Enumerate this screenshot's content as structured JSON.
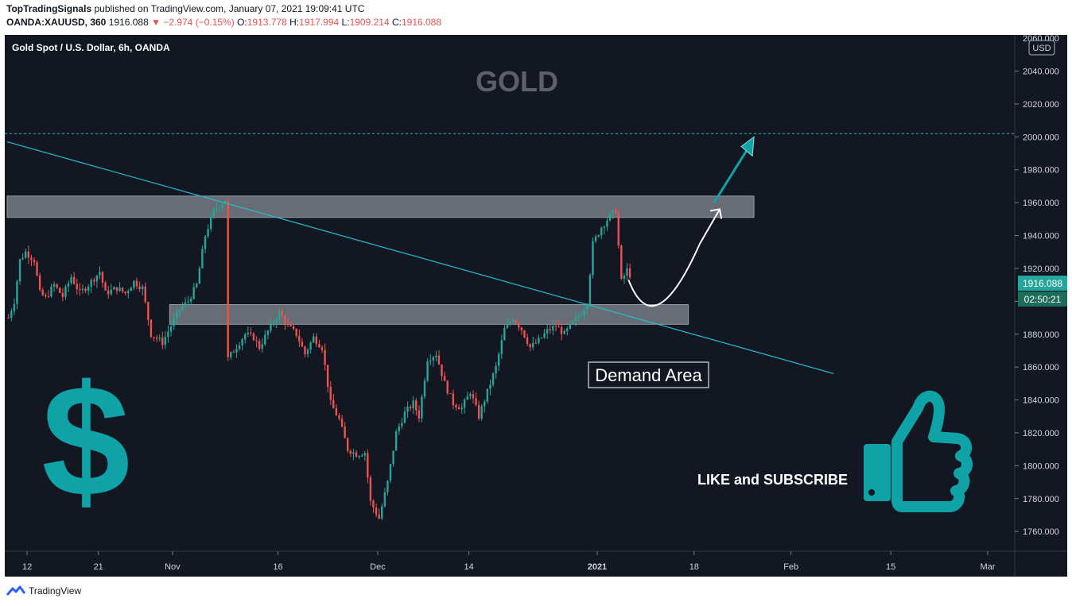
{
  "header": {
    "author": "TopTradingSignals",
    "published_text": "published on TradingView.com, January 07, 2021 19:09:41 UTC",
    "symbol": "OANDA:XAUUSD, 360",
    "last": "1916.088",
    "change": "▼ −2.974 (−0.15%)",
    "open_label": "O:",
    "open": "1913.778",
    "high_label": "H:",
    "high": "1917.994",
    "low_label": "L:",
    "low": "1909.214",
    "close_label": "C:",
    "close": "1916.088"
  },
  "chart": {
    "instrument_title": "Gold Spot / U.S. Dollar, 6h, OANDA",
    "watermark_title": "GOLD",
    "currency_badge": "USD",
    "price_badge": "1916.088",
    "countdown_badge": "02:50:21",
    "demand_label": "Demand Area",
    "cta_text": "LIKE and SUBSCRIBE",
    "dollar_symbol": "$",
    "icons": [
      "dollar-sign-icon",
      "thumbs-up-icon",
      "tradingview-logo-icon"
    ],
    "colors": {
      "background": "#131722",
      "up": "#26a69a",
      "down": "#ef5350",
      "trendline": "#1fc0d0",
      "accent": "#0fa3a8",
      "zone": "#787b86"
    }
  },
  "chart_data": {
    "type": "candlestick",
    "title": "Gold Spot / U.S. Dollar, 6h, OANDA",
    "timeframe": "6h",
    "currency": "USD",
    "ylim": [
      1748,
      2062
    ],
    "y_ticks": [
      1760,
      1780,
      1800,
      1820,
      1840,
      1860,
      1880,
      1900,
      1920,
      1940,
      1960,
      1980,
      2000,
      2020,
      2040
    ],
    "y_tick_labels": [
      "1760.000",
      "1780.000",
      "1800.000",
      "1820.000",
      "1840.000",
      "1860.000",
      "1880.000",
      "1900.000",
      "1920.000",
      "1940.000",
      "1960.000",
      "1980.000",
      "2000.000",
      "2020.000",
      "2040.000"
    ],
    "y_top_partial": "2060.000",
    "x_tick_labels": [
      "12",
      "21",
      "Nov",
      "16",
      "Dec",
      "14",
      "2021",
      "18",
      "Feb",
      "15",
      "Mar"
    ],
    "x_tick_bars": [
      7,
      32,
      58,
      95,
      130,
      162,
      207,
      241,
      275,
      310,
      344
    ],
    "price_path": [
      [
        0,
        1890
      ],
      [
        2,
        1900
      ],
      [
        4,
        1925
      ],
      [
        6,
        1930
      ],
      [
        9,
        1925
      ],
      [
        11,
        1905
      ],
      [
        13,
        1902
      ],
      [
        16,
        1910
      ],
      [
        19,
        1903
      ],
      [
        22,
        1915
      ],
      [
        25,
        1905
      ],
      [
        28,
        1910
      ],
      [
        32,
        1918
      ],
      [
        34,
        1905
      ],
      [
        38,
        1908
      ],
      [
        41,
        1905
      ],
      [
        44,
        1912
      ],
      [
        47,
        1908
      ],
      [
        50,
        1880
      ],
      [
        54,
        1875
      ],
      [
        57,
        1885
      ],
      [
        60,
        1895
      ],
      [
        63,
        1900
      ],
      [
        66,
        1910
      ],
      [
        69,
        1940
      ],
      [
        72,
        1955
      ],
      [
        76,
        1962
      ],
      [
        77,
        1865
      ],
      [
        79,
        1870
      ],
      [
        83,
        1880
      ],
      [
        86,
        1878
      ],
      [
        88,
        1872
      ],
      [
        92,
        1885
      ],
      [
        95,
        1893
      ],
      [
        98,
        1885
      ],
      [
        101,
        1880
      ],
      [
        104,
        1868
      ],
      [
        107,
        1878
      ],
      [
        110,
        1872
      ],
      [
        113,
        1838
      ],
      [
        116,
        1828
      ],
      [
        119,
        1810
      ],
      [
        122,
        1807
      ],
      [
        125,
        1808
      ],
      [
        127,
        1778
      ],
      [
        130,
        1768
      ],
      [
        133,
        1790
      ],
      [
        136,
        1820
      ],
      [
        139,
        1832
      ],
      [
        142,
        1838
      ],
      [
        144,
        1830
      ],
      [
        147,
        1865
      ],
      [
        150,
        1868
      ],
      [
        153,
        1850
      ],
      [
        156,
        1838
      ],
      [
        159,
        1835
      ],
      [
        162,
        1845
      ],
      [
        165,
        1830
      ],
      [
        168,
        1845
      ],
      [
        171,
        1860
      ],
      [
        174,
        1883
      ],
      [
        177,
        1890
      ],
      [
        180,
        1883
      ],
      [
        183,
        1872
      ],
      [
        186,
        1876
      ],
      [
        189,
        1882
      ],
      [
        192,
        1885
      ],
      [
        195,
        1880
      ],
      [
        198,
        1887
      ],
      [
        201,
        1893
      ],
      [
        203,
        1900
      ],
      [
        205,
        1935
      ],
      [
        208,
        1945
      ],
      [
        211,
        1952
      ],
      [
        213,
        1955
      ],
      [
        215,
        1912
      ],
      [
        217,
        1919
      ],
      [
        218,
        1916
      ]
    ],
    "bars_to_mar": 344,
    "resistance_zone": [
      1951,
      1964
    ],
    "demand_zone": [
      1886,
      1898
    ],
    "target_level": 2002,
    "trendline": [
      [
        0,
        1997
      ],
      [
        290,
        1856
      ]
    ],
    "forecast_path": [
      [
        218,
        1913
      ],
      [
        227,
        1892
      ],
      [
        243,
        1935
      ],
      [
        250,
        1956
      ]
    ],
    "target_arrow": [
      [
        248,
        1960
      ],
      [
        262,
        2000
      ]
    ],
    "last_price": 1916.088
  },
  "footer": {
    "brand": "TradingView"
  }
}
